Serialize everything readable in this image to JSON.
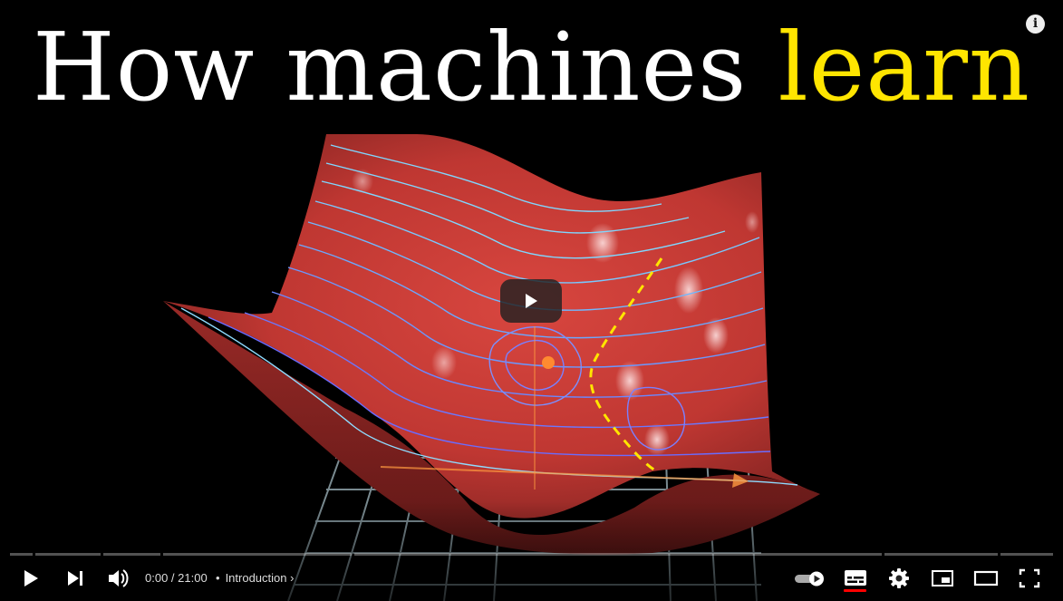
{
  "video": {
    "title_prefix": "How machines ",
    "title_highlight": "learn",
    "title_color": "#ffffff",
    "highlight_color": "#ffe500",
    "info_label": "i"
  },
  "player": {
    "big_play_icon": "play-icon",
    "time_current": "0:00",
    "time_separator": " / ",
    "time_total": "21:00",
    "chapter_bullet": "•",
    "chapter_title": "Introduction",
    "chapter_chevron": "›",
    "progress_played_fraction": 0.0,
    "progress_color": "#c4302b",
    "captions_on": true,
    "autoplay_on": true
  },
  "controls": {
    "play": "play-icon",
    "next": "skip-next-icon",
    "volume": "volume-icon",
    "autoplay": "autoplay-toggle-icon",
    "subtitles": "subtitles-icon",
    "settings": "gear-icon",
    "miniplayer": "miniplayer-icon",
    "theater": "theater-mode-icon",
    "fullscreen": "fullscreen-icon"
  }
}
